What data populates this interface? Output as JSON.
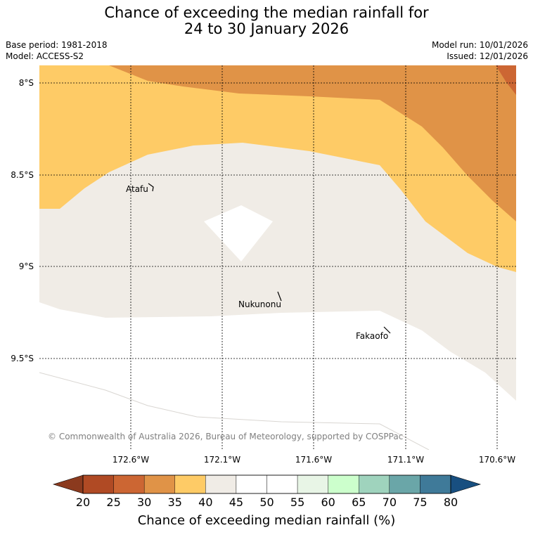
{
  "title": {
    "line1": "Chance of exceeding the median rainfall for",
    "line2": "24 to 30 January 2026"
  },
  "meta": {
    "base_period": "Base period: 1981-2018",
    "model": "Model: ACCESS-S2",
    "model_run": "Model run: 10/01/2026",
    "issued": "Issued: 12/01/2026"
  },
  "map": {
    "lat_labels": [
      "8°S",
      "8.5°S",
      "9°S",
      "9.5°S"
    ],
    "lon_labels": [
      "172.6°W",
      "172.1°W",
      "171.6°W",
      "171.1°W",
      "170.6°W"
    ],
    "places": [
      "Atafu",
      "Nukunonu",
      "Fakaofo"
    ],
    "credit": "© Commonwealth of Australia 2026, Bureau of Meteorology, supported by COSPPac"
  },
  "colorbar": {
    "title": "Chance of exceeding median rainfall (%)",
    "ticks": [
      "20",
      "25",
      "30",
      "35",
      "40",
      "45",
      "50",
      "55",
      "60",
      "65",
      "70",
      "75",
      "80"
    ],
    "colors": [
      "#8b3a1e",
      "#b04a24",
      "#cc6633",
      "#e09347",
      "#fecb66",
      "#f0ece6",
      "#ffffff",
      "#ffffff",
      "#e8f5e6",
      "#ccffcc",
      "#9fd3bd",
      "#6aa6a8",
      "#3f7a99",
      "#184f80"
    ]
  }
}
